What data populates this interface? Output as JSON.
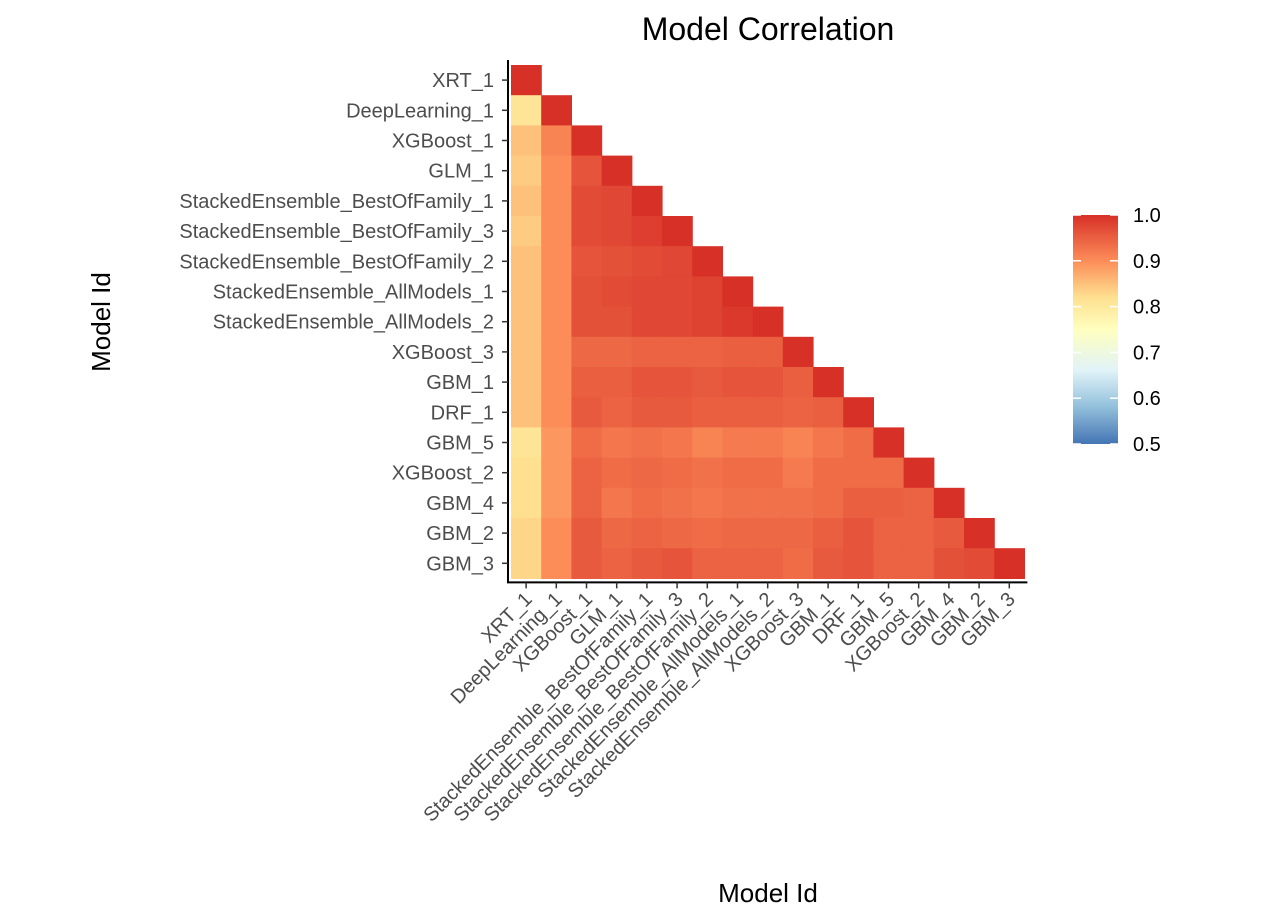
{
  "chart_data": {
    "type": "heatmap",
    "title": "Model Correlation",
    "xlabel": "Model Id",
    "ylabel": "Model Id",
    "models": [
      "XRT_1",
      "DeepLearning_1",
      "XGBoost_1",
      "GLM_1",
      "StackedEnsemble_BestOfFamily_1",
      "StackedEnsemble_BestOfFamily_3",
      "StackedEnsemble_BestOfFamily_2",
      "StackedEnsemble_AllModels_1",
      "StackedEnsemble_AllModels_2",
      "XGBoost_3",
      "GBM_1",
      "DRF_1",
      "GBM_5",
      "XGBoost_2",
      "GBM_4",
      "GBM_2",
      "GBM_3"
    ],
    "matrix_lower": [
      [
        1.0
      ],
      [
        0.81,
        1.0
      ],
      [
        0.85,
        0.91,
        1.0
      ],
      [
        0.84,
        0.9,
        0.96,
        1.0
      ],
      [
        0.85,
        0.9,
        0.97,
        0.975,
        1.0
      ],
      [
        0.84,
        0.9,
        0.97,
        0.975,
        0.985,
        1.0
      ],
      [
        0.85,
        0.9,
        0.96,
        0.965,
        0.97,
        0.975,
        1.0
      ],
      [
        0.85,
        0.9,
        0.965,
        0.97,
        0.975,
        0.975,
        0.98,
        1.0
      ],
      [
        0.85,
        0.9,
        0.965,
        0.965,
        0.975,
        0.975,
        0.98,
        0.99,
        1.0
      ],
      [
        0.85,
        0.9,
        0.94,
        0.94,
        0.945,
        0.945,
        0.945,
        0.95,
        0.95,
        1.0
      ],
      [
        0.85,
        0.9,
        0.95,
        0.95,
        0.96,
        0.96,
        0.955,
        0.96,
        0.96,
        0.95,
        1.0
      ],
      [
        0.85,
        0.9,
        0.955,
        0.945,
        0.955,
        0.955,
        0.95,
        0.95,
        0.95,
        0.945,
        0.95,
        1.0
      ],
      [
        0.81,
        0.89,
        0.935,
        0.925,
        0.93,
        0.925,
        0.91,
        0.92,
        0.92,
        0.91,
        0.925,
        0.935,
        1.0
      ],
      [
        0.82,
        0.89,
        0.945,
        0.935,
        0.94,
        0.935,
        0.93,
        0.935,
        0.935,
        0.92,
        0.935,
        0.935,
        0.935,
        1.0
      ],
      [
        0.82,
        0.89,
        0.945,
        0.925,
        0.935,
        0.93,
        0.925,
        0.93,
        0.93,
        0.93,
        0.935,
        0.95,
        0.95,
        0.945,
        1.0
      ],
      [
        0.83,
        0.9,
        0.955,
        0.94,
        0.945,
        0.94,
        0.935,
        0.94,
        0.94,
        0.94,
        0.95,
        0.96,
        0.945,
        0.945,
        0.955,
        1.0
      ],
      [
        0.83,
        0.9,
        0.955,
        0.945,
        0.955,
        0.96,
        0.945,
        0.945,
        0.945,
        0.935,
        0.955,
        0.96,
        0.945,
        0.945,
        0.965,
        0.97,
        1.0
      ]
    ],
    "legend": {
      "range": [
        0.5,
        1.0
      ],
      "ticks": [
        "1.0",
        "0.9",
        "0.8",
        "0.7",
        "0.6",
        "0.5"
      ]
    },
    "colors": {
      "scale": [
        "#4575b4",
        "#91bfdb",
        "#e0f3f8",
        "#ffffbf",
        "#fee090",
        "#fc8d59",
        "#d73027"
      ],
      "scale_stops": [
        0.5,
        0.58,
        0.66,
        0.75,
        0.82,
        0.9,
        1.0
      ]
    }
  }
}
